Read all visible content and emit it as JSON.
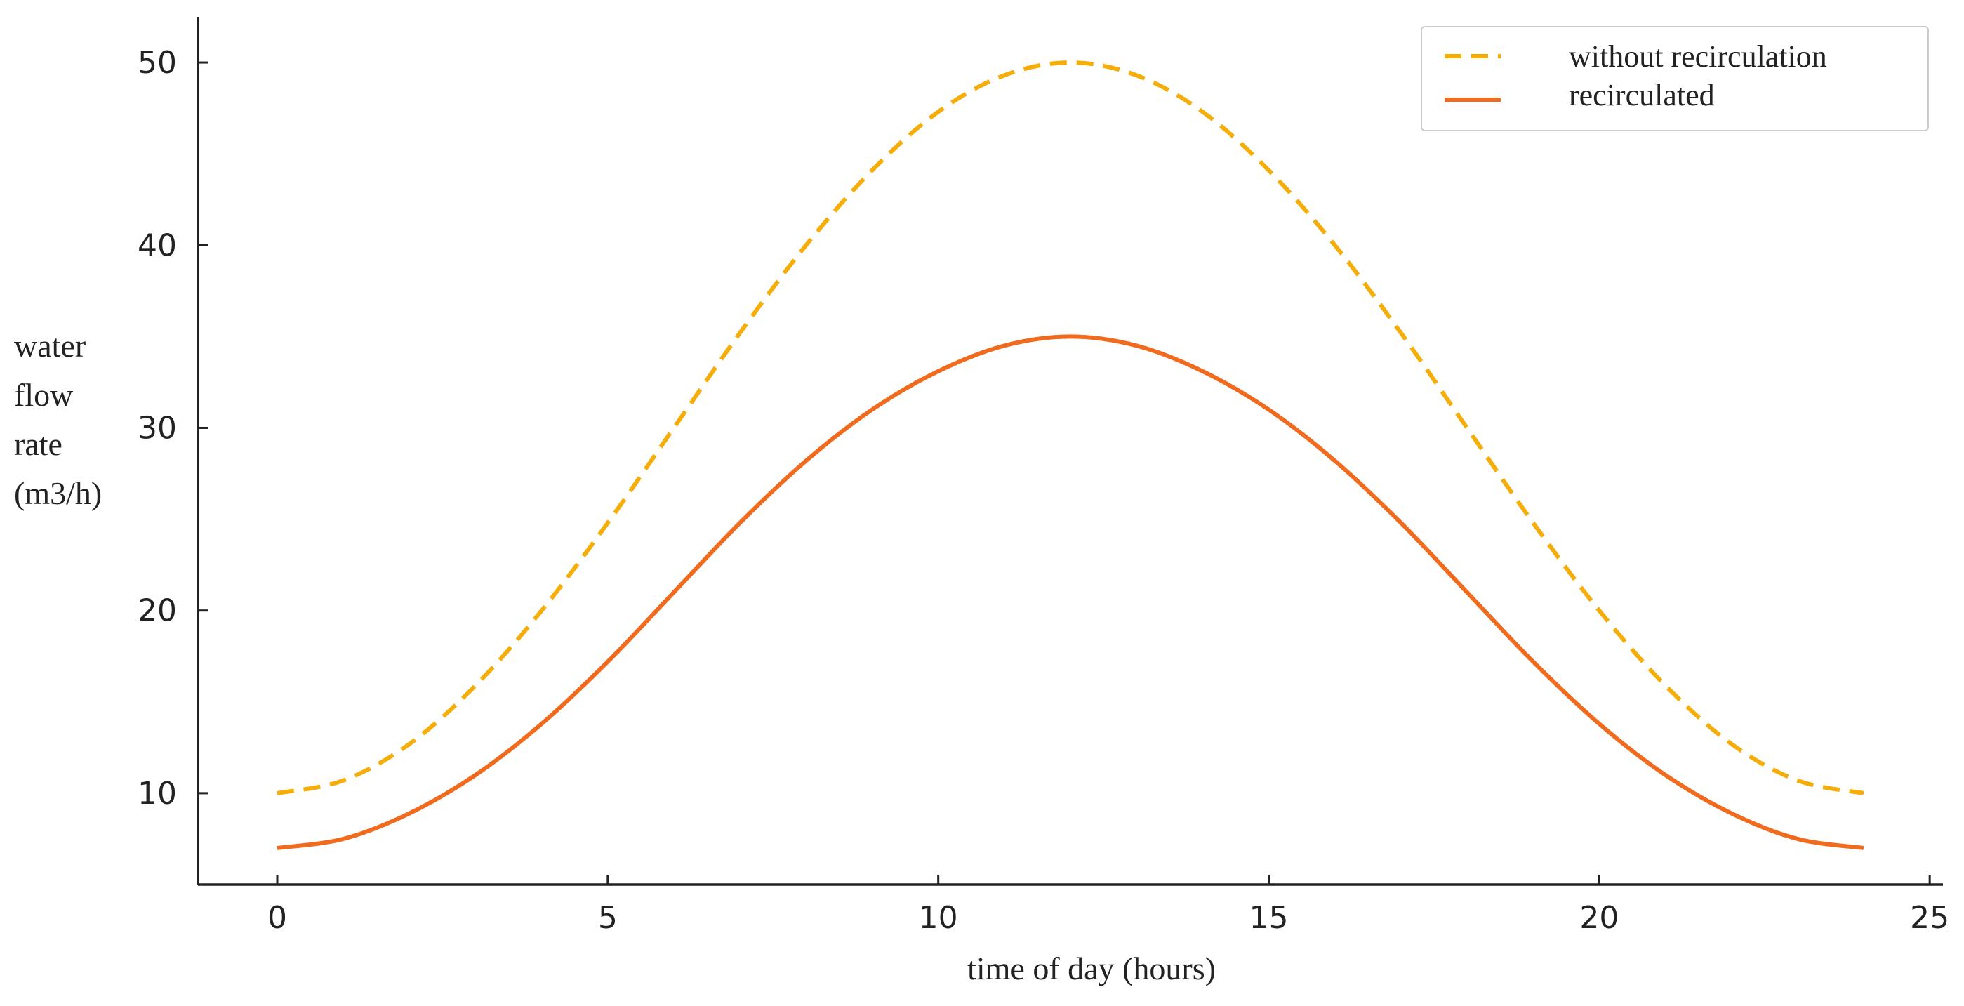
{
  "chart_data": {
    "type": "line",
    "title": "",
    "xlabel": "time of day (hours)",
    "ylabel_lines": [
      "water",
      "flow",
      "rate",
      "(m3/h)"
    ],
    "xlim": [
      -1.2,
      25.2
    ],
    "ylim": [
      5,
      52.5
    ],
    "xticks": [
      0,
      5,
      10,
      15,
      20,
      25
    ],
    "yticks": [
      10,
      20,
      30,
      40,
      50
    ],
    "grid": false,
    "legend_position": "top-right",
    "series": [
      {
        "name": "without recirculation",
        "style": "dashed",
        "color": "#F5AD0A",
        "x": [
          0,
          1,
          2,
          3,
          4,
          5,
          6,
          7,
          8,
          9,
          10,
          11,
          12,
          13,
          14,
          15,
          16,
          17,
          18,
          19,
          20,
          21,
          22,
          23,
          24
        ],
        "y": [
          10,
          10.7,
          12.7,
          15.9,
          20,
          24.8,
          30,
          35.2,
          40,
          44.1,
          47.3,
          49.3,
          50,
          49.3,
          47.3,
          44.1,
          40,
          35.2,
          30,
          24.8,
          20,
          15.9,
          12.7,
          10.7,
          10
        ]
      },
      {
        "name": "recirculated",
        "style": "solid",
        "color": "#F06B1E",
        "x": [
          0,
          1,
          2,
          3,
          4,
          5,
          6,
          7,
          8,
          9,
          10,
          11,
          12,
          13,
          14,
          15,
          16,
          17,
          18,
          19,
          20,
          21,
          22,
          23,
          24
        ],
        "y": [
          7,
          7.5,
          8.9,
          11.0,
          13.8,
          17.2,
          21,
          24.8,
          28.2,
          31.0,
          33.1,
          34.5,
          35,
          34.5,
          33.1,
          31.0,
          28.2,
          24.8,
          21,
          17.2,
          13.8,
          11.0,
          8.9,
          7.5,
          7
        ]
      }
    ]
  }
}
